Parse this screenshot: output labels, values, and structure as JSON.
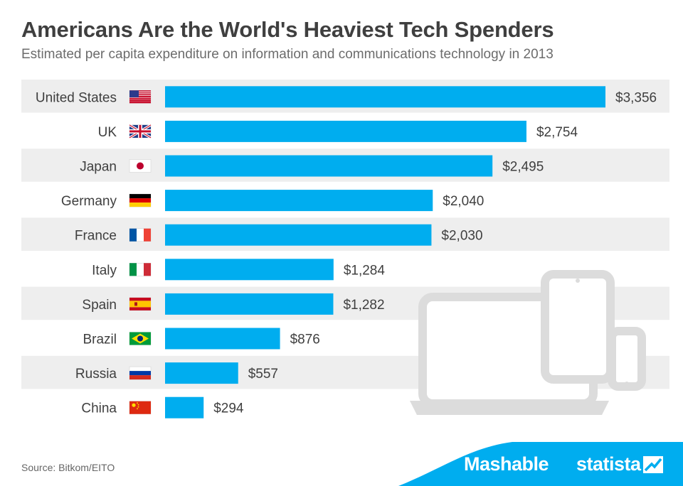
{
  "title": "Americans Are the World's Heaviest Tech Spenders",
  "subtitle": "Estimated per capita expenditure on information and communications technology in 2013",
  "source": "Source: Bitkom/EITO",
  "brands": {
    "mashable": "Mashable",
    "statista": "statista"
  },
  "colors": {
    "bar": "#00adef",
    "stripe": "#eeeeee",
    "text": "#3f3f3f",
    "subtitle": "#6c6c6c",
    "band": "#00adef",
    "illustration": "#dcdcdc"
  },
  "chart_data": {
    "type": "bar",
    "orientation": "horizontal",
    "categories": [
      "United States",
      "UK",
      "Japan",
      "Germany",
      "France",
      "Italy",
      "Spain",
      "Brazil",
      "Russia",
      "China"
    ],
    "values": [
      3356,
      2754,
      2495,
      2040,
      2030,
      1284,
      1282,
      876,
      557,
      294
    ],
    "value_labels": [
      "$3,356",
      "$2,754",
      "$2,495",
      "$2,040",
      "$2,030",
      "$1,284",
      "$1,282",
      "$876",
      "$557",
      "$294"
    ],
    "flag_icons": [
      "us-flag-icon",
      "uk-flag-icon",
      "japan-flag-icon",
      "germany-flag-icon",
      "france-flag-icon",
      "italy-flag-icon",
      "spain-flag-icon",
      "brazil-flag-icon",
      "russia-flag-icon",
      "china-flag-icon"
    ],
    "xlim": [
      0,
      3356
    ],
    "grid": false,
    "legend": "none",
    "decoration": "device-illustration-icon"
  }
}
